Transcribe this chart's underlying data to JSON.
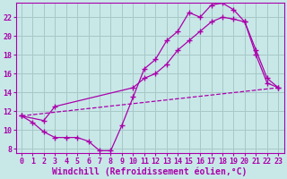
{
  "background_color": "#c8e8e8",
  "line_color": "#aa00aa",
  "grid_color": "#a8c8c8",
  "xlabel": "Windchill (Refroidissement éolien,°C)",
  "xlabel_fontsize": 7,
  "tick_fontsize": 6,
  "xlim": [
    -0.5,
    23.5
  ],
  "ylim": [
    7.5,
    23.5
  ],
  "yticks": [
    8,
    10,
    12,
    14,
    16,
    18,
    20,
    22
  ],
  "xticks": [
    0,
    1,
    2,
    3,
    4,
    5,
    6,
    7,
    8,
    9,
    10,
    11,
    12,
    13,
    14,
    15,
    16,
    17,
    18,
    19,
    20,
    21,
    22,
    23
  ],
  "series": [
    {
      "x": [
        0,
        1,
        2,
        3,
        4,
        5,
        6,
        7,
        8,
        9,
        10,
        11,
        12,
        13,
        14,
        15,
        16,
        17,
        18,
        19,
        20,
        21,
        22,
        23
      ],
      "y": [
        11.5,
        10.8,
        9.8,
        9.2,
        9.2,
        9.2,
        8.8,
        7.8,
        7.8,
        10.5,
        13.5,
        16.5,
        17.5,
        19.5,
        20.5,
        22.5,
        22.0,
        23.3,
        23.5,
        22.8,
        21.5,
        18.5,
        15.5,
        14.5
      ]
    },
    {
      "x": [
        0,
        2,
        3,
        10,
        11,
        12,
        13,
        14,
        15,
        16,
        17,
        18,
        19,
        20,
        21,
        22,
        23
      ],
      "y": [
        11.5,
        11.0,
        12.5,
        14.5,
        15.5,
        16.0,
        17.0,
        18.5,
        19.5,
        20.5,
        21.5,
        22.0,
        21.8,
        21.5,
        18.0,
        15.0,
        14.5
      ]
    },
    {
      "x": [
        0,
        23
      ],
      "y": [
        11.5,
        14.5
      ]
    }
  ]
}
